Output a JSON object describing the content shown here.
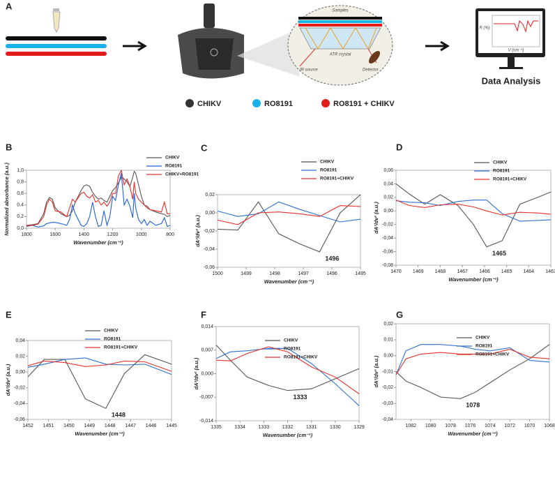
{
  "panel_a": {
    "label": "A",
    "legend": [
      "CHIKV",
      "RO8191",
      "RO8191 + CHIKV"
    ],
    "samples": "Samples",
    "crystal": "ATR crystal",
    "source": "IR source",
    "detector": "Detector",
    "r_axis": "R (%)",
    "v_axis": "V (cm⁻¹)",
    "analysis": "Data Analysis"
  },
  "chart_data": [
    {
      "type": "line",
      "panel": "B",
      "xlabel": "Wavenumber (cm⁻¹)",
      "ylabel": "Normalized absorbance (a.u.)",
      "x": [
        1800,
        1760,
        1720,
        1680,
        1660,
        1640,
        1620,
        1600,
        1560,
        1520,
        1500,
        1480,
        1460,
        1420,
        1400,
        1380,
        1360,
        1340,
        1320,
        1300,
        1280,
        1260,
        1240,
        1220,
        1200,
        1180,
        1160,
        1140,
        1120,
        1100,
        1080,
        1060,
        1050,
        1040,
        1020,
        1000,
        980,
        960,
        940,
        900,
        860,
        840,
        820,
        800
      ],
      "series": [
        {
          "name": "CHIKV",
          "color": "#555555",
          "values": [
            0.05,
            0.06,
            0.08,
            0.25,
            0.45,
            0.53,
            0.5,
            0.35,
            0.25,
            0.2,
            0.22,
            0.3,
            0.45,
            0.65,
            0.73,
            0.75,
            0.72,
            0.62,
            0.55,
            0.5,
            0.52,
            0.48,
            0.45,
            0.55,
            0.65,
            0.7,
            0.78,
            0.88,
            0.85,
            0.8,
            0.72,
            0.88,
            0.98,
            0.95,
            0.75,
            0.55,
            0.4,
            0.38,
            0.32,
            0.28,
            0.25,
            0.24,
            0.2,
            0.22
          ]
        },
        {
          "name": "RO8191",
          "color": "#1f5fe0",
          "values": [
            0.03,
            0.05,
            0.02,
            0.04,
            0.08,
            0.09,
            0.1,
            0.1,
            0.08,
            0.05,
            0.15,
            0.4,
            0.25,
            0.05,
            0.03,
            0.08,
            0.2,
            0.45,
            0.2,
            0.03,
            0.05,
            0.3,
            0.05,
            0.2,
            0.55,
            0.48,
            0.75,
            0.95,
            0.4,
            0.5,
            0.38,
            0.18,
            0.6,
            0.35,
            0.15,
            0.08,
            0.15,
            0.05,
            0.12,
            0.05,
            0.08,
            0.18,
            0.03,
            0.05
          ]
        },
        {
          "name": "CHIKV+RO8191",
          "color": "#e8302a",
          "values": [
            0.04,
            0.05,
            0.07,
            0.2,
            0.4,
            0.5,
            0.45,
            0.3,
            0.28,
            0.2,
            0.35,
            0.5,
            0.45,
            0.6,
            0.62,
            0.55,
            0.52,
            0.58,
            0.45,
            0.48,
            0.4,
            0.45,
            0.38,
            0.45,
            0.6,
            0.6,
            0.9,
            1.0,
            0.75,
            0.85,
            0.72,
            0.5,
            0.8,
            0.6,
            0.5,
            0.45,
            0.4,
            0.35,
            0.32,
            0.3,
            0.28,
            0.45,
            0.25,
            0.25
          ]
        }
      ],
      "xlim": [
        1800,
        800
      ],
      "xticks": [
        1800,
        1600,
        1400,
        1200,
        1000,
        800
      ],
      "ylim": [
        0,
        1
      ],
      "yticks": [
        {
          "value": 0,
          "label": "0,0"
        },
        {
          "value": 0.2,
          "label": "0,2"
        },
        {
          "value": 0.4,
          "label": "0,4"
        },
        {
          "value": 0.6,
          "label": "0,6"
        },
        {
          "value": 0.8,
          "label": "0,8"
        },
        {
          "value": 1,
          "label": "1,0"
        }
      ]
    },
    {
      "type": "line",
      "panel": "C",
      "xlabel": "Wavenumber (cm⁻¹)",
      "ylabel": "dA²/dv² (a.u.)",
      "annotation": "1496",
      "x": [
        1500,
        1499.29,
        1498.57,
        1497.86,
        1497.14,
        1496.43,
        1495.71,
        1495
      ],
      "series": [
        {
          "name": "CHIKV",
          "color": "#555555",
          "values": [
            -0.018,
            -0.019,
            0.012,
            -0.023,
            -0.034,
            -0.043,
            0.0,
            0.02
          ]
        },
        {
          "name": "RO8191",
          "color": "#2e6fd1",
          "values": [
            0.002,
            -0.004,
            -0.001,
            0.012,
            0.004,
            -0.003,
            -0.01,
            -0.007
          ]
        },
        {
          "name": "RO8191+CHIKV",
          "color": "#e8302a",
          "values": [
            -0.008,
            -0.013,
            0.0,
            0.001,
            -0.001,
            -0.004,
            0.008,
            0.007
          ]
        }
      ],
      "xlim": [
        1500,
        1495
      ],
      "xticks": [
        1500,
        1499,
        1498,
        1497,
        1496,
        1495
      ],
      "ylim": [
        -0.06,
        0.02
      ],
      "yticks": [
        {
          "value": -0.06,
          "label": "-0,06"
        },
        {
          "value": -0.04,
          "label": "-0,04"
        },
        {
          "value": -0.02,
          "label": "-0,02"
        },
        {
          "value": 0,
          "label": "0,00"
        },
        {
          "value": 0.02,
          "label": "0,02"
        }
      ]
    },
    {
      "type": "line",
      "panel": "D",
      "xlabel": "Wavenumber (cm⁻¹)",
      "ylabel": "dA²/dv² (a.u.)",
      "annotation": "1465",
      "x": [
        1470,
        1469.4,
        1468.7,
        1468,
        1467.2,
        1466.5,
        1465.9,
        1465.2,
        1464.4,
        1463.6,
        1463
      ],
      "series": [
        {
          "name": "CHIKV",
          "color": "#555555",
          "values": [
            0.04,
            0.025,
            0.01,
            0.024,
            0.008,
            -0.02,
            -0.053,
            -0.044,
            0.01,
            0.02,
            0.028
          ]
        },
        {
          "name": "RO8191",
          "color": "#2e6fd1",
          "values": [
            0.015,
            0.013,
            0.012,
            0.008,
            0.014,
            0.016,
            0.016,
            -0.004,
            -0.015,
            -0.014,
            -0.013
          ]
        },
        {
          "name": "RO8191+CHIKV",
          "color": "#e8302a",
          "values": [
            0.016,
            0.008,
            0.005,
            0.009,
            0.01,
            0.006,
            0.0,
            -0.006,
            -0.002,
            -0.003,
            -0.005
          ]
        }
      ],
      "xlim": [
        1470,
        1463
      ],
      "xticks": [
        1470,
        1469,
        1468,
        1467,
        1466,
        1465,
        1464,
        1463
      ],
      "ylim": [
        -0.08,
        0.06
      ],
      "yticks": [
        {
          "value": -0.08,
          "label": "-0,08"
        },
        {
          "value": -0.06,
          "label": "-0,06"
        },
        {
          "value": -0.04,
          "label": "-0,04"
        },
        {
          "value": -0.02,
          "label": "-0,02"
        },
        {
          "value": 0,
          "label": "0,00"
        },
        {
          "value": 0.02,
          "label": "0,02"
        },
        {
          "value": 0.04,
          "label": "0,04"
        },
        {
          "value": 0.06,
          "label": "0,06"
        }
      ]
    },
    {
      "type": "line",
      "panel": "E",
      "xlabel": "Wavenumber (cm⁻¹)",
      "ylabel": "dA²/dv² (a.u.)",
      "annotation": "1448",
      "x": [
        1452,
        1451.2,
        1450.2,
        1449.2,
        1448.2,
        1447.3,
        1446.3,
        1445
      ],
      "series": [
        {
          "name": "CHIKV",
          "color": "#555555",
          "values": [
            -0.006,
            0.016,
            0.016,
            -0.034,
            -0.046,
            -0.002,
            0.022,
            0.01
          ]
        },
        {
          "name": "RO8191",
          "color": "#2e6fd1",
          "values": [
            0.006,
            0.01,
            0.016,
            0.018,
            0.01,
            0.009,
            0.01,
            -0.003
          ]
        },
        {
          "name": "RO8191+CHIKV",
          "color": "#e8302a",
          "values": [
            0.008,
            0.014,
            0.012,
            0.007,
            0.009,
            0.014,
            0.013,
            0.001
          ]
        }
      ],
      "xlim": [
        1452,
        1445
      ],
      "xticks": [
        1452,
        1451,
        1450,
        1449,
        1448,
        1447,
        1446,
        1445
      ],
      "ylim": [
        -0.06,
        0.04
      ],
      "yticks": [
        {
          "value": -0.06,
          "label": "-0,06"
        },
        {
          "value": -0.04,
          "label": "-0,04"
        },
        {
          "value": -0.02,
          "label": "-0,02"
        },
        {
          "value": 0,
          "label": "0,00"
        },
        {
          "value": 0.02,
          "label": "0,02"
        },
        {
          "value": 0.04,
          "label": "0,04"
        }
      ]
    },
    {
      "type": "line",
      "panel": "F",
      "xlabel": "Wavenumber (cm⁻¹)",
      "ylabel": "dA²/dv² (a.u.)",
      "annotation": "1333",
      "x": [
        1335,
        1334.4,
        1333.7,
        1332.8,
        1332,
        1331,
        1330,
        1329
      ],
      "series": [
        {
          "name": "CHIKV",
          "color": "#555555",
          "values": [
            0.0085,
            0.004,
            -0.001,
            -0.0035,
            -0.005,
            -0.0045,
            -0.0015,
            0.0015
          ]
        },
        {
          "name": "RO8191",
          "color": "#2e6fd1",
          "values": [
            0.0045,
            0.0065,
            0.0068,
            0.0075,
            0.0075,
            0.003,
            -0.003,
            -0.0095
          ]
        },
        {
          "name": "RO8191+CHIKV",
          "color": "#e8302a",
          "values": [
            0.004,
            0.0038,
            0.006,
            0.008,
            0.0065,
            0.002,
            -0.001,
            -0.006
          ]
        }
      ],
      "xlim": [
        1335,
        1329
      ],
      "xticks": [
        1335,
        1334,
        1333,
        1332,
        1331,
        1330,
        1329
      ],
      "ylim": [
        -0.014,
        0.014
      ],
      "yticks": [
        {
          "value": -0.014,
          "label": "-0,014"
        },
        {
          "value": -0.007,
          "label": "-0,007"
        },
        {
          "value": 0,
          "label": "0,000"
        },
        {
          "value": 0.007,
          "label": "0,007"
        },
        {
          "value": 0.014,
          "label": "0,014"
        }
      ]
    },
    {
      "type": "line",
      "panel": "G",
      "xlabel": "Wavenumber (cm⁻¹)",
      "ylabel": "dA²/dv² (a.u.)",
      "annotation": "1078",
      "x": [
        1083.5,
        1082.5,
        1081,
        1079,
        1077,
        1075.5,
        1074,
        1072,
        1070,
        1068
      ],
      "series": [
        {
          "name": "CHIKV",
          "color": "#555555",
          "values": [
            -0.01,
            -0.016,
            -0.02,
            -0.026,
            -0.027,
            -0.023,
            -0.017,
            -0.009,
            -0.002,
            0.007
          ]
        },
        {
          "name": "RO8191",
          "color": "#2e6fd1",
          "values": [
            -0.012,
            0.003,
            0.007,
            0.007,
            0.006,
            0.004,
            0.003,
            0.005,
            -0.003,
            -0.004
          ]
        },
        {
          "name": "RO8191+CHIKV",
          "color": "#e8302a",
          "values": [
            -0.012,
            -0.002,
            0.001,
            0.002,
            0.001,
            0.001,
            0.001,
            0.004,
            -0.001,
            -0.002
          ]
        }
      ],
      "xlim": [
        1083.5,
        1068
      ],
      "xticks": [
        1082,
        1080,
        1078,
        1076,
        1074,
        1072,
        1070,
        1068
      ],
      "ylim": [
        -0.04,
        0.02
      ],
      "yticks": [
        {
          "value": -0.04,
          "label": "-0,04"
        },
        {
          "value": -0.03,
          "label": "-0,03"
        },
        {
          "value": -0.02,
          "label": "-0,02"
        },
        {
          "value": -0.01,
          "label": "-0,01"
        },
        {
          "value": 0,
          "label": "0,00"
        },
        {
          "value": 0.01,
          "label": "0,01"
        },
        {
          "value": 0.02,
          "label": "0,02"
        }
      ]
    }
  ]
}
